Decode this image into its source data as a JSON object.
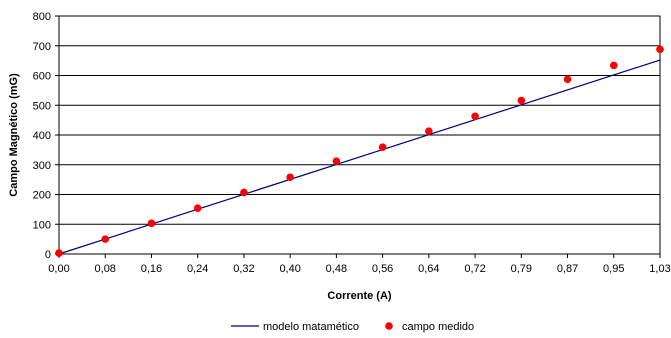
{
  "chart_data": {
    "type": "scatter",
    "title": "",
    "xlabel": "Corrente (A)",
    "ylabel": "Campo Magnético (mG)",
    "x_tick_labels": [
      "0,00",
      "0,08",
      "0,16",
      "0,24",
      "0,32",
      "0,40",
      "0,48",
      "0,56",
      "0,64",
      "0,72",
      "0,79",
      "0,87",
      "0,95",
      "1,03"
    ],
    "y_tick_labels": [
      "0",
      "100",
      "200",
      "300",
      "400",
      "500",
      "600",
      "700",
      "800"
    ],
    "xlim": [
      0,
      13
    ],
    "ylim": [
      0,
      800
    ],
    "grid": "horizontal",
    "legend_position": "bottom",
    "series": [
      {
        "name": "modelo matamético",
        "kind": "line",
        "color": "#000080",
        "points": [
          [
            0,
            0
          ],
          [
            13,
            652
          ]
        ]
      },
      {
        "name": "campo medido",
        "kind": "scatter",
        "color": "#ff0000",
        "points": [
          [
            0,
            3
          ],
          [
            1,
            50
          ],
          [
            2,
            103
          ],
          [
            3,
            154
          ],
          [
            4,
            207
          ],
          [
            5,
            258
          ],
          [
            6,
            312
          ],
          [
            7,
            359
          ],
          [
            8,
            413
          ],
          [
            9,
            463
          ],
          [
            10,
            516
          ],
          [
            11,
            587
          ],
          [
            12,
            634
          ],
          [
            13,
            688
          ]
        ]
      }
    ]
  }
}
